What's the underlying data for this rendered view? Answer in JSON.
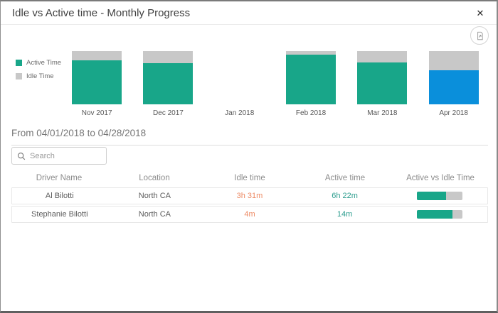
{
  "dialog": {
    "title": "Idle vs Active time - Monthly Progress",
    "close_glyph": "✕"
  },
  "icons": {
    "close": "close-icon",
    "export": "export-report-icon",
    "search": "search-icon"
  },
  "colors": {
    "active": "#18A689",
    "idle": "#C8C8C8",
    "selected_month": "#0A8FDB",
    "idle_value_text": "#ED8A64",
    "active_value_text": "#2E9E8F",
    "progress_active": "#18A689",
    "progress_track": "#C8C8C8"
  },
  "chart_data": {
    "type": "bar",
    "stacked": true,
    "unit": "percent_of_month_total",
    "title": "Idle vs Active time - Monthly Progress",
    "xlabel": "",
    "ylabel": "",
    "axes_visible": false,
    "legend_position": "left",
    "categories": [
      "Nov 2017",
      "Dec 2017",
      "Jan 2018",
      "Feb 2018",
      "Mar 2018",
      "Apr 2018"
    ],
    "series": [
      {
        "name": "Active Time",
        "color": "#18A689",
        "values": [
          83,
          78,
          0,
          93,
          79,
          64
        ]
      },
      {
        "name": "Idle Time",
        "color": "#C8C8C8",
        "values": [
          17,
          22,
          0,
          7,
          21,
          36
        ]
      }
    ],
    "highlighted_category": "Apr 2018",
    "highlight_color": "#0A8FDB"
  },
  "period": {
    "label": "From 04/01/2018 to 04/28/2018"
  },
  "search": {
    "placeholder": "Search",
    "value": ""
  },
  "table": {
    "columns": [
      "Driver Name",
      "Location",
      "Idle time",
      "Active time",
      "Active vs Idle Time"
    ],
    "rows": [
      {
        "driver": "Al Bilotti",
        "location": "North CA",
        "idle": "3h 31m",
        "active": "6h 22m",
        "active_pct": 64
      },
      {
        "driver": "Stephanie Bilotti",
        "location": "North CA",
        "idle": "4m",
        "active": "14m",
        "active_pct": 78
      }
    ]
  }
}
